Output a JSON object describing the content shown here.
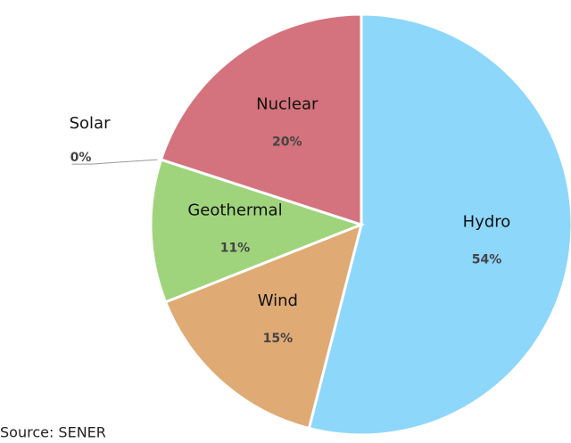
{
  "chart_data": {
    "type": "pie",
    "categories": [
      "Hydro",
      "Wind",
      "Geothermal",
      "Solar",
      "Nuclear"
    ],
    "values": [
      54,
      15,
      11,
      0,
      20
    ],
    "value_labels": [
      "54%",
      "15%",
      "11%",
      "0%",
      "20%"
    ],
    "colors": [
      "#8dd7fb",
      "#e0aa74",
      "#9fd47c",
      "#f2c94c",
      "#d4737d"
    ],
    "source": "Source: SENER"
  }
}
